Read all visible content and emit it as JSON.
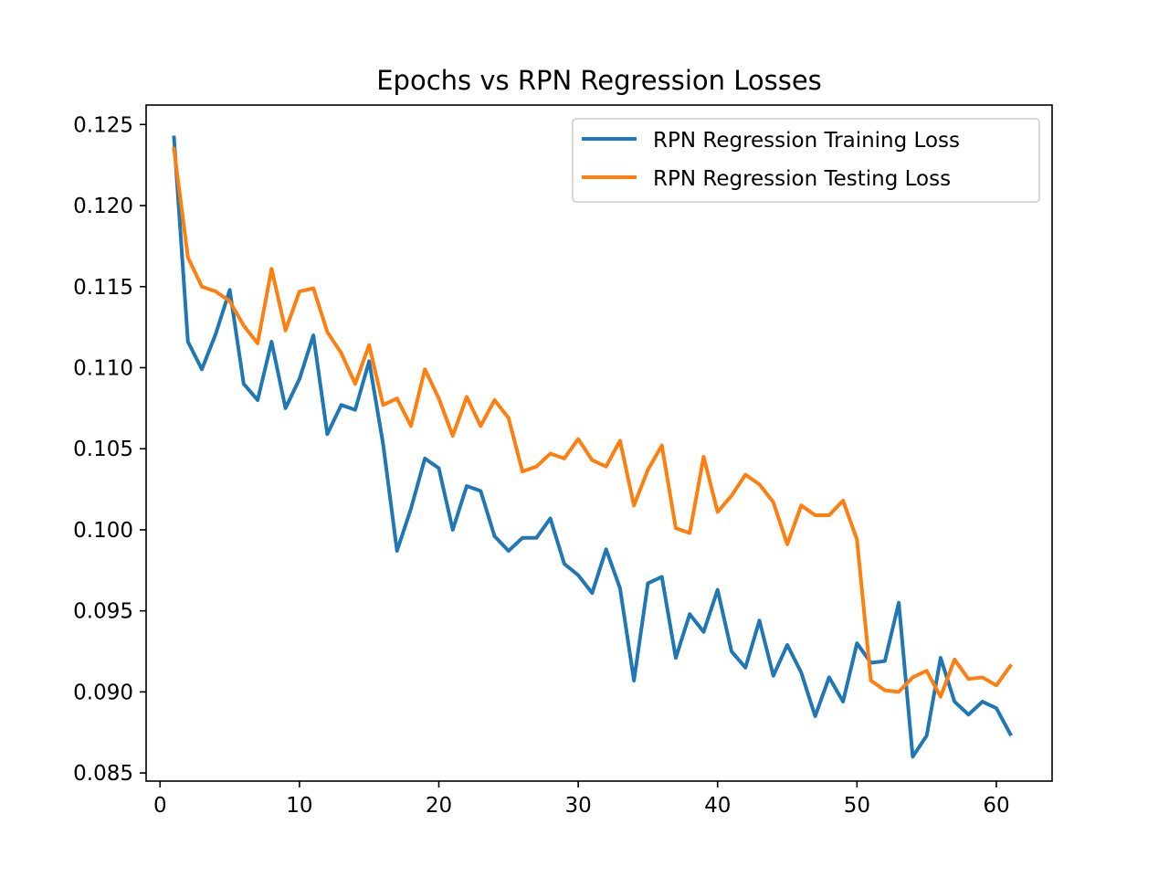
{
  "chart_data": {
    "type": "line",
    "title": "Epochs vs  RPN Regression Losses",
    "xlabel": "",
    "ylabel": "",
    "xlim": [
      -1.0,
      64.0
    ],
    "ylim": [
      0.0845,
      0.1262
    ],
    "xticks": [
      0,
      10,
      20,
      30,
      40,
      50,
      60
    ],
    "xtick_labels": [
      "0",
      "10",
      "20",
      "30",
      "40",
      "50",
      "60"
    ],
    "yticks": [
      0.085,
      0.09,
      0.095,
      0.1,
      0.105,
      0.11,
      0.115,
      0.12,
      0.125
    ],
    "ytick_labels": [
      "0.085",
      "0.090",
      "0.095",
      "0.100",
      "0.105",
      "0.110",
      "0.115",
      "0.120",
      "0.125"
    ],
    "grid": false,
    "legend_position": "top-right",
    "x": [
      1,
      2,
      3,
      4,
      5,
      6,
      7,
      8,
      9,
      10,
      11,
      12,
      13,
      14,
      15,
      16,
      17,
      18,
      19,
      20,
      21,
      22,
      23,
      24,
      25,
      26,
      27,
      28,
      29,
      30,
      31,
      32,
      33,
      34,
      35,
      36,
      37,
      38,
      39,
      40,
      41,
      42,
      43,
      44,
      45,
      46,
      47,
      48,
      49,
      50,
      51,
      52,
      53,
      54,
      55,
      56,
      57,
      58,
      59,
      60,
      61
    ],
    "series": [
      {
        "name": "RPN Regression Training Loss",
        "color": "#1f77b4",
        "values": [
          0.1242,
          0.1116,
          0.1099,
          0.1121,
          0.1148,
          0.109,
          0.108,
          0.1116,
          0.1075,
          0.1093,
          0.112,
          0.1059,
          0.1077,
          0.1074,
          0.1104,
          0.1053,
          0.0987,
          0.1013,
          0.1044,
          0.1038,
          0.1,
          0.1027,
          0.1024,
          0.0996,
          0.0987,
          0.0995,
          0.0995,
          0.1007,
          0.0979,
          0.0972,
          0.0961,
          0.0988,
          0.0964,
          0.0907,
          0.0967,
          0.0971,
          0.0921,
          0.0948,
          0.0937,
          0.0963,
          0.0925,
          0.0915,
          0.0944,
          0.091,
          0.0929,
          0.0912,
          0.0885,
          0.0909,
          0.0894,
          0.093,
          0.0918,
          0.0919,
          0.0955,
          0.086,
          0.0873,
          0.0921,
          0.0894,
          0.0886,
          0.0894,
          0.089,
          0.0874
        ]
      },
      {
        "name": "RPN Regression Testing Loss",
        "color": "#ff7f0e",
        "values": [
          0.1235,
          0.1168,
          0.115,
          0.1147,
          0.1141,
          0.1126,
          0.1115,
          0.1161,
          0.1123,
          0.1147,
          0.1149,
          0.1122,
          0.1109,
          0.109,
          0.1114,
          0.1077,
          0.1081,
          0.1064,
          0.1099,
          0.1081,
          0.1058,
          0.1082,
          0.1064,
          0.108,
          0.1069,
          0.1036,
          0.1039,
          0.1047,
          0.1044,
          0.1056,
          0.1043,
          0.1039,
          0.1055,
          0.1015,
          0.1037,
          0.1052,
          0.1001,
          0.0998,
          0.1045,
          0.1011,
          0.1021,
          0.1034,
          0.1028,
          0.1017,
          0.0991,
          0.1015,
          0.1009,
          0.1009,
          0.1018,
          0.0994,
          0.0907,
          0.0901,
          0.09,
          0.0909,
          0.0913,
          0.0897,
          0.092,
          0.0908,
          0.0909,
          0.0904,
          0.0916
        ]
      }
    ]
  }
}
